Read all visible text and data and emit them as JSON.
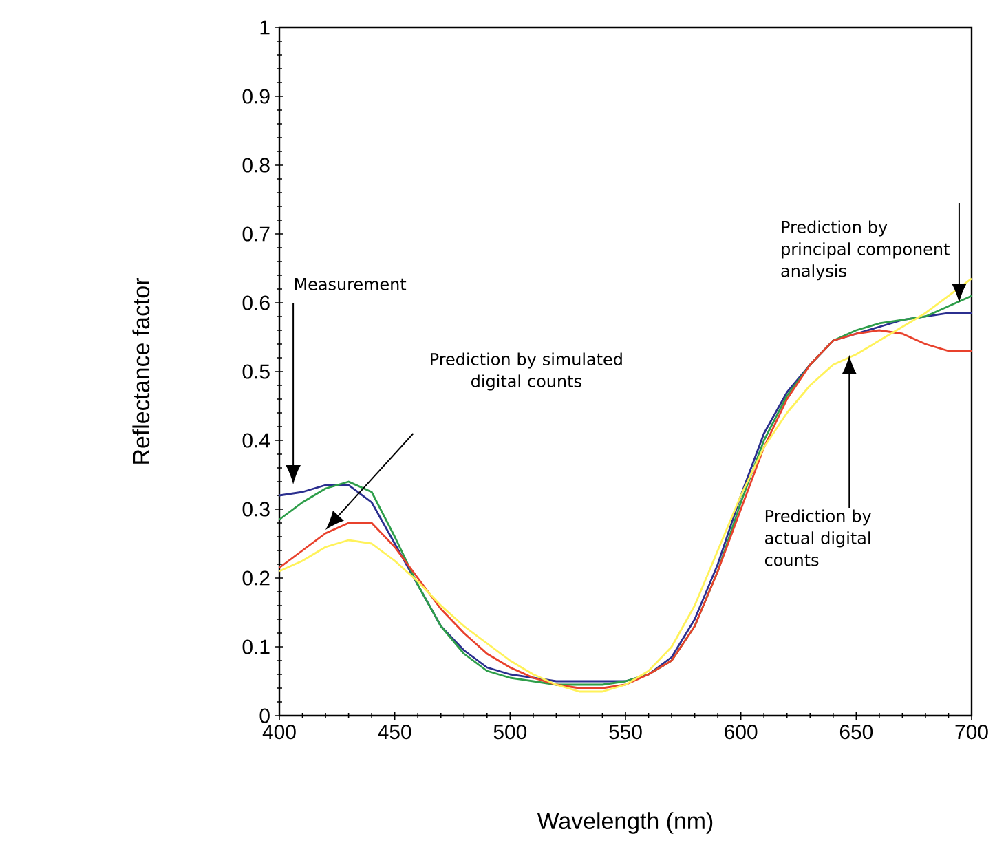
{
  "chart_data": {
    "type": "line",
    "xlabel": "Wavelength (nm)",
    "ylabel": "Reflectance factor",
    "x": [
      400,
      410,
      420,
      430,
      440,
      450,
      460,
      470,
      480,
      490,
      500,
      510,
      520,
      530,
      540,
      550,
      560,
      570,
      580,
      590,
      600,
      610,
      620,
      630,
      640,
      650,
      660,
      670,
      680,
      690,
      700
    ],
    "series": [
      {
        "color": "#2b2f8f",
        "values": [
          0.32,
          0.325,
          0.335,
          0.335,
          0.31,
          0.25,
          0.19,
          0.13,
          0.095,
          0.07,
          0.06,
          0.055,
          0.05,
          0.05,
          0.05,
          0.05,
          0.06,
          0.085,
          0.14,
          0.22,
          0.32,
          0.41,
          0.47,
          0.51,
          0.545,
          0.555,
          0.565,
          0.575,
          0.58,
          0.585,
          0.585
        ]
      },
      {
        "color": "#2e9e4a",
        "values": [
          0.285,
          0.31,
          0.33,
          0.34,
          0.325,
          0.26,
          0.19,
          0.13,
          0.09,
          0.065,
          0.055,
          0.05,
          0.045,
          0.045,
          0.045,
          0.05,
          0.06,
          0.08,
          0.13,
          0.21,
          0.31,
          0.4,
          0.465,
          0.51,
          0.545,
          0.56,
          0.57,
          0.575,
          0.58,
          0.595,
          0.61
        ]
      },
      {
        "color": "#e8412c",
        "values": [
          0.215,
          0.24,
          0.265,
          0.28,
          0.28,
          0.245,
          0.2,
          0.155,
          0.12,
          0.09,
          0.07,
          0.055,
          0.045,
          0.04,
          0.04,
          0.045,
          0.06,
          0.08,
          0.13,
          0.21,
          0.3,
          0.39,
          0.46,
          0.51,
          0.545,
          0.555,
          0.56,
          0.555,
          0.54,
          0.53,
          0.53
        ]
      },
      {
        "color": "#fff25a",
        "values": [
          0.21,
          0.225,
          0.245,
          0.255,
          0.25,
          0.225,
          0.195,
          0.16,
          0.13,
          0.105,
          0.08,
          0.06,
          0.045,
          0.035,
          0.035,
          0.045,
          0.065,
          0.1,
          0.16,
          0.24,
          0.32,
          0.39,
          0.44,
          0.48,
          0.51,
          0.525,
          0.545,
          0.565,
          0.585,
          0.61,
          0.635
        ]
      }
    ],
    "xlim": [
      400,
      700
    ],
    "xticks": [
      400,
      450,
      500,
      550,
      600,
      650,
      700
    ],
    "ylim": [
      0,
      1
    ],
    "yticks": [
      0,
      0.1,
      0.2,
      0.3,
      0.4,
      0.5,
      0.6,
      0.7,
      0.8,
      0.9,
      1
    ],
    "annotations": [
      "Measurement",
      "Prediction by simulated digital counts",
      "Prediction by principal component analysis",
      "Prediction by actual digital counts"
    ],
    "grid": false
  }
}
